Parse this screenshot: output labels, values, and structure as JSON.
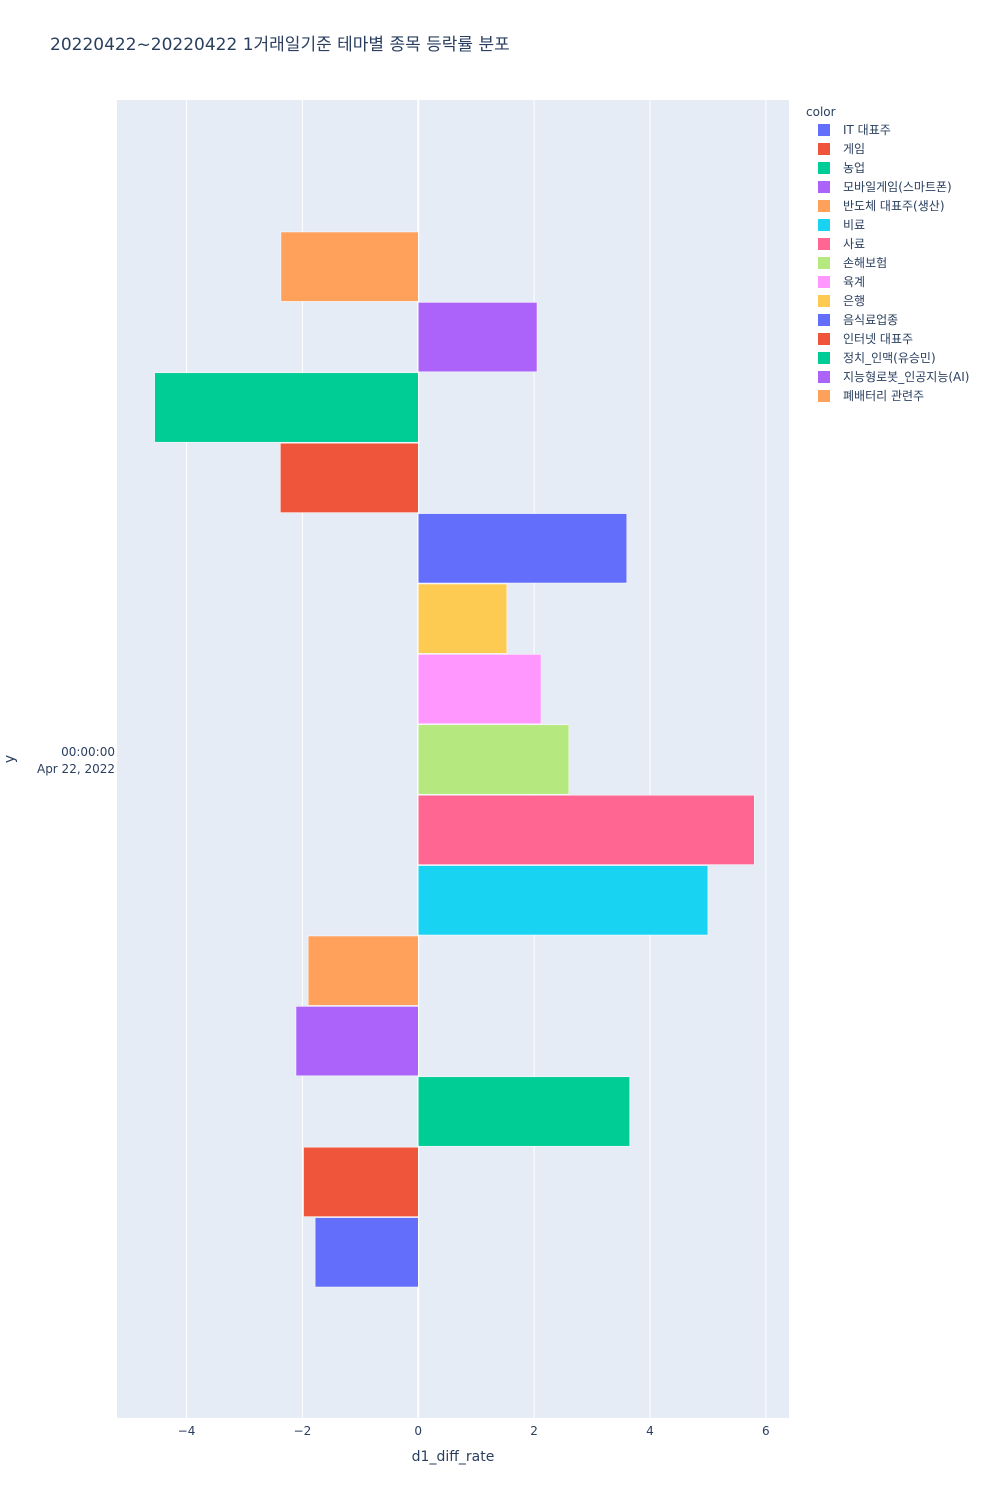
{
  "chart_data": {
    "type": "bar",
    "orientation": "horizontal",
    "title": "20220422~20220422 1거래일기준 테마별 종목 등락률 분포",
    "xlabel": "d1_diff_rate",
    "ylabel": "y",
    "xlim": [
      -5.2,
      6.4
    ],
    "xticks": [
      -4,
      -2,
      0,
      2,
      4,
      6
    ],
    "xtick_labels": [
      "−4",
      "−2",
      "0",
      "2",
      "4",
      "6"
    ],
    "y_category_label_lines": [
      "00:00:00",
      "Apr 22, 2022"
    ],
    "grid": true,
    "legend_title": "color",
    "legend_position": "right",
    "series": [
      {
        "name": "IT 대표주",
        "value": -1.78,
        "color": "#636efa"
      },
      {
        "name": "게임",
        "value": -1.98,
        "color": "#EF553B"
      },
      {
        "name": "농업",
        "value": 3.65,
        "color": "#00cc96"
      },
      {
        "name": "모바일게임(스마트폰)",
        "value": -2.11,
        "color": "#ab63fa"
      },
      {
        "name": "반도체 대표주(생산)",
        "value": -1.9,
        "color": "#FFA15A"
      },
      {
        "name": "비료",
        "value": 5.0,
        "color": "#19d3f3"
      },
      {
        "name": "사료",
        "value": 5.8,
        "color": "#FF6692"
      },
      {
        "name": "손해보험",
        "value": 2.6,
        "color": "#B6E880"
      },
      {
        "name": "육계",
        "value": 2.12,
        "color": "#FF97FF"
      },
      {
        "name": "은행",
        "value": 1.53,
        "color": "#FECB52"
      },
      {
        "name": "음식료업종",
        "value": 3.6,
        "color": "#636efa"
      },
      {
        "name": "인터넷 대표주",
        "value": -2.38,
        "color": "#EF553B"
      },
      {
        "name": "정치_인맥(유승민)",
        "value": -4.55,
        "color": "#00cc96"
      },
      {
        "name": "지능형로봇_인공지능(AI)",
        "value": 2.05,
        "color": "#ab63fa"
      },
      {
        "name": "폐배터리 관련주",
        "value": -2.37,
        "color": "#FFA15A"
      }
    ]
  }
}
